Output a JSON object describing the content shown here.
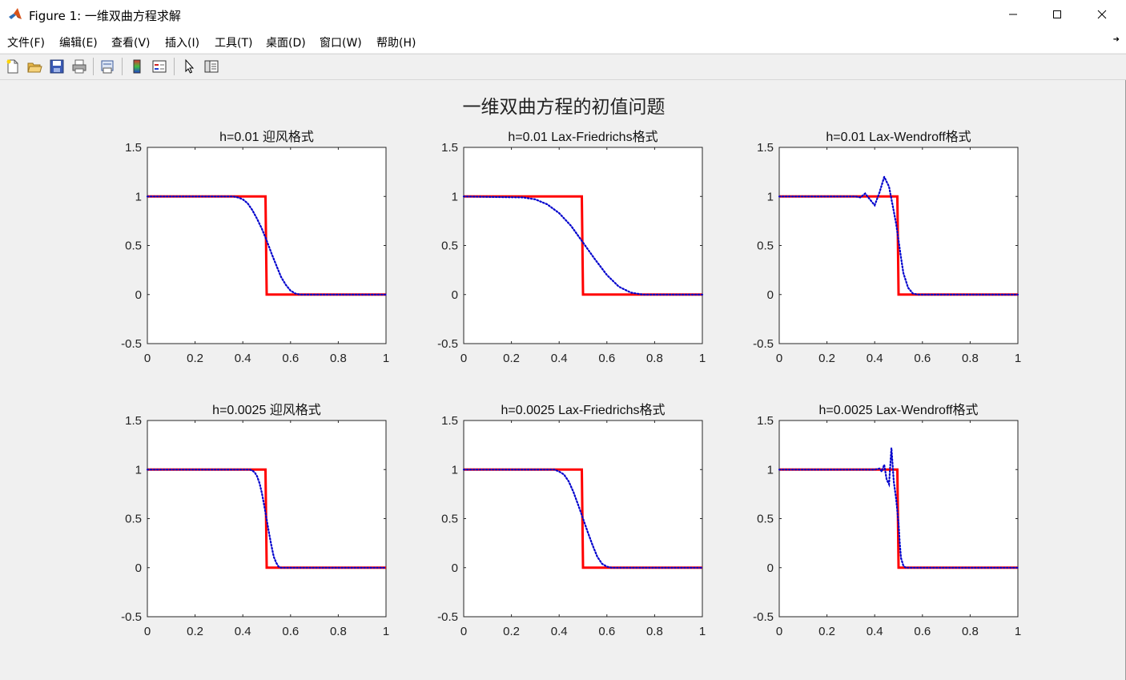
{
  "window": {
    "title": "Figure 1: 一维双曲方程求解",
    "icon": "matlab-logo-icon",
    "controls": [
      "minimize-icon",
      "maximize-icon",
      "close-icon"
    ]
  },
  "menu": {
    "items": [
      "文件(F)",
      "编辑(E)",
      "查看(V)",
      "插入(I)",
      "工具(T)",
      "桌面(D)",
      "窗口(W)",
      "帮助(H)"
    ],
    "overflow_icon": "arrow-icon"
  },
  "toolbar": {
    "buttons": [
      "new-figure-icon",
      "open-file-icon",
      "save-icon",
      "print-icon",
      "print-preview-icon",
      "colorbar-icon",
      "legend-icon",
      "pointer-icon",
      "property-editor-icon"
    ]
  },
  "figure": {
    "suptitle": "一维双曲方程的初值问题",
    "colors": {
      "exact": "#ff0000",
      "numeric": "#0000cc"
    }
  },
  "chart_data": [
    {
      "type": "line",
      "title": "h=0.01 迎风格式",
      "xlim": [
        0,
        1
      ],
      "ylim": [
        -0.5,
        1.5
      ],
      "xticks": [
        "0",
        "0.2",
        "0.4",
        "0.6",
        "0.8",
        "1"
      ],
      "yticks": [
        "-0.5",
        "0",
        "0.5",
        "1",
        "1.5"
      ],
      "series": [
        {
          "style": "solid-red",
          "x": [
            0,
            0.495,
            0.5,
            1
          ],
          "y": [
            1,
            1,
            0,
            0
          ]
        },
        {
          "style": "dotted-blue",
          "x": [
            0,
            0.36,
            0.38,
            0.4,
            0.42,
            0.44,
            0.46,
            0.48,
            0.5,
            0.52,
            0.54,
            0.56,
            0.58,
            0.6,
            0.62,
            0.64,
            1
          ],
          "y": [
            1,
            1,
            0.99,
            0.97,
            0.93,
            0.86,
            0.77,
            0.67,
            0.55,
            0.42,
            0.3,
            0.18,
            0.1,
            0.04,
            0.01,
            0,
            0
          ]
        }
      ]
    },
    {
      "type": "line",
      "title": "h=0.01 Lax-Friedrichs格式",
      "xlim": [
        0,
        1
      ],
      "ylim": [
        -0.5,
        1.5
      ],
      "xticks": [
        "0",
        "0.2",
        "0.4",
        "0.6",
        "0.8",
        "1"
      ],
      "yticks": [
        "-0.5",
        "0",
        "0.5",
        "1",
        "1.5"
      ],
      "series": [
        {
          "style": "solid-red",
          "x": [
            0,
            0.495,
            0.5,
            1
          ],
          "y": [
            1,
            1,
            0,
            0
          ]
        },
        {
          "style": "dotted-blue",
          "x": [
            0,
            0.25,
            0.3,
            0.35,
            0.4,
            0.45,
            0.5,
            0.55,
            0.6,
            0.65,
            0.7,
            0.75,
            1
          ],
          "y": [
            1,
            0.99,
            0.97,
            0.92,
            0.83,
            0.7,
            0.53,
            0.36,
            0.2,
            0.08,
            0.02,
            0,
            0
          ]
        }
      ]
    },
    {
      "type": "line",
      "title": "h=0.01 Lax-Wendroff格式",
      "xlim": [
        0,
        1
      ],
      "ylim": [
        -0.5,
        1.5
      ],
      "xticks": [
        "0",
        "0.2",
        "0.4",
        "0.6",
        "0.8",
        "1"
      ],
      "yticks": [
        "-0.5",
        "0",
        "0.5",
        "1",
        "1.5"
      ],
      "series": [
        {
          "style": "solid-red",
          "x": [
            0,
            0.495,
            0.5,
            1
          ],
          "y": [
            1,
            1,
            0,
            0
          ]
        },
        {
          "style": "dotted-blue",
          "x": [
            0,
            0.32,
            0.34,
            0.36,
            0.38,
            0.4,
            0.42,
            0.44,
            0.46,
            0.48,
            0.49,
            0.5,
            0.51,
            0.52,
            0.54,
            0.56,
            0.58,
            1
          ],
          "y": [
            1,
            1,
            0.99,
            1.03,
            0.97,
            0.91,
            1.04,
            1.2,
            1.1,
            0.85,
            0.72,
            0.55,
            0.38,
            0.22,
            0.07,
            0.01,
            0,
            0
          ]
        }
      ]
    },
    {
      "type": "line",
      "title": "h=0.0025 迎风格式",
      "xlim": [
        0,
        1
      ],
      "ylim": [
        -0.5,
        1.5
      ],
      "xticks": [
        "0",
        "0.2",
        "0.4",
        "0.6",
        "0.8",
        "1"
      ],
      "yticks": [
        "-0.5",
        "0",
        "0.5",
        "1",
        "1.5"
      ],
      "series": [
        {
          "style": "solid-red",
          "x": [
            0,
            0.495,
            0.5,
            1
          ],
          "y": [
            1,
            1,
            0,
            0
          ]
        },
        {
          "style": "dotted-blue",
          "x": [
            0,
            0.43,
            0.44,
            0.45,
            0.46,
            0.47,
            0.48,
            0.49,
            0.5,
            0.51,
            0.52,
            0.53,
            0.54,
            0.55,
            0.56,
            1
          ],
          "y": [
            1,
            1,
            0.99,
            0.97,
            0.93,
            0.86,
            0.76,
            0.63,
            0.49,
            0.35,
            0.22,
            0.11,
            0.05,
            0.01,
            0,
            0
          ]
        }
      ]
    },
    {
      "type": "line",
      "title": "h=0.0025 Lax-Friedrichs格式",
      "xlim": [
        0,
        1
      ],
      "ylim": [
        -0.5,
        1.5
      ],
      "xticks": [
        "0",
        "0.2",
        "0.4",
        "0.6",
        "0.8",
        "1"
      ],
      "yticks": [
        "-0.5",
        "0",
        "0.5",
        "1",
        "1.5"
      ],
      "series": [
        {
          "style": "solid-red",
          "x": [
            0,
            0.495,
            0.5,
            1
          ],
          "y": [
            1,
            1,
            0,
            0
          ]
        },
        {
          "style": "dotted-blue",
          "x": [
            0,
            0.38,
            0.4,
            0.42,
            0.44,
            0.46,
            0.48,
            0.5,
            0.52,
            0.54,
            0.56,
            0.58,
            0.6,
            0.62,
            1
          ],
          "y": [
            1,
            1,
            0.98,
            0.95,
            0.88,
            0.77,
            0.64,
            0.5,
            0.36,
            0.23,
            0.11,
            0.04,
            0.01,
            0,
            0
          ]
        }
      ]
    },
    {
      "type": "line",
      "title": "h=0.0025 Lax-Wendroff格式",
      "xlim": [
        0,
        1
      ],
      "ylim": [
        -0.5,
        1.5
      ],
      "xticks": [
        "0",
        "0.2",
        "0.4",
        "0.6",
        "0.8",
        "1"
      ],
      "yticks": [
        "-0.5",
        "0",
        "0.5",
        "1",
        "1.5"
      ],
      "series": [
        {
          "style": "solid-red",
          "x": [
            0,
            0.495,
            0.5,
            1
          ],
          "y": [
            1,
            1,
            0,
            0
          ]
        },
        {
          "style": "dotted-blue",
          "x": [
            0,
            0.4,
            0.42,
            0.43,
            0.44,
            0.45,
            0.46,
            0.47,
            0.48,
            0.49,
            0.5,
            0.505,
            0.51,
            0.52,
            0.53,
            0.54,
            1
          ],
          "y": [
            1,
            1,
            1.01,
            0.98,
            1.05,
            0.9,
            0.85,
            1.22,
            0.88,
            0.7,
            0.45,
            0.25,
            0.1,
            0.02,
            0,
            0,
            0
          ]
        }
      ]
    }
  ]
}
